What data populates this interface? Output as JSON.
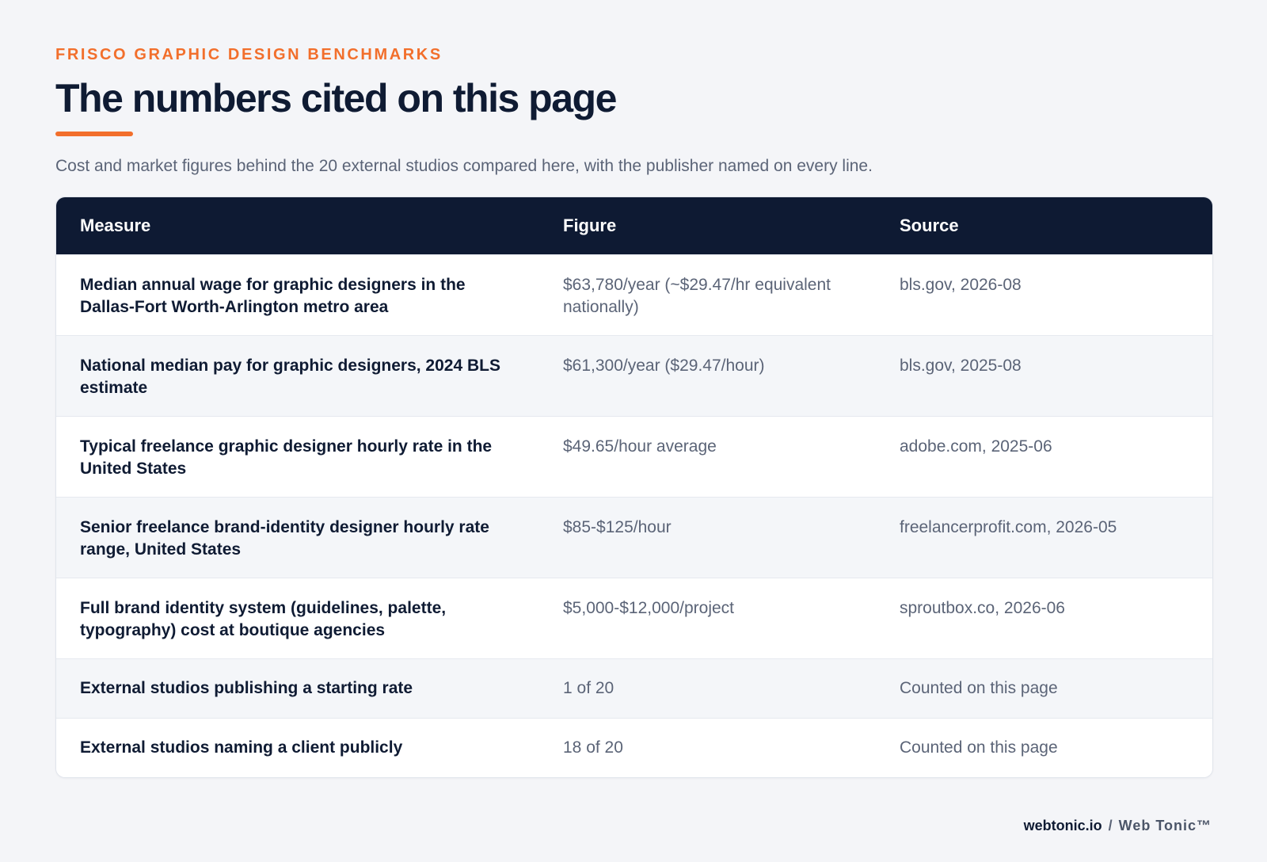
{
  "header": {
    "eyebrow": "FRISCO GRAPHIC DESIGN BENCHMARKS",
    "title": "The numbers cited on this page",
    "subtitle": "Cost and market figures behind the 20 external studios compared here, with the publisher named on every line."
  },
  "table": {
    "columns": [
      "Measure",
      "Figure",
      "Source"
    ],
    "rows": [
      {
        "measure": "Median annual wage for graphic designers in the Dallas-Fort Worth-Arlington metro area",
        "figure": "$63,780/year (~$29.47/hr equivalent nationally)",
        "source": "bls.gov, 2026-08"
      },
      {
        "measure": "National median pay for graphic designers, 2024 BLS estimate",
        "figure": "$61,300/year ($29.47/hour)",
        "source": "bls.gov, 2025-08"
      },
      {
        "measure": "Typical freelance graphic designer hourly rate in the United States",
        "figure": "$49.65/hour average",
        "source": "adobe.com, 2025-06"
      },
      {
        "measure": "Senior freelance brand-identity designer hourly rate range, United States",
        "figure": "$85-$125/hour",
        "source": "freelancerprofit.com, 2026-05"
      },
      {
        "measure": "Full brand identity system (guidelines, palette, typography) cost at boutique agencies",
        "figure": "$5,000-$12,000/project",
        "source": "sproutbox.co, 2026-06"
      },
      {
        "measure": "External studios publishing a starting rate",
        "figure": "1 of 20",
        "source": "Counted on this page"
      },
      {
        "measure": "External studios naming a client publicly",
        "figure": "18 of 20",
        "source": "Counted on this page"
      }
    ]
  },
  "footer": {
    "domain": "webtonic.io",
    "separator": "/",
    "brand": "Web Tonic™"
  },
  "colors": {
    "accent": "#f26f2c",
    "navy": "#0e1a33",
    "muted_text": "#5b6477",
    "background": "#f4f5f8"
  }
}
